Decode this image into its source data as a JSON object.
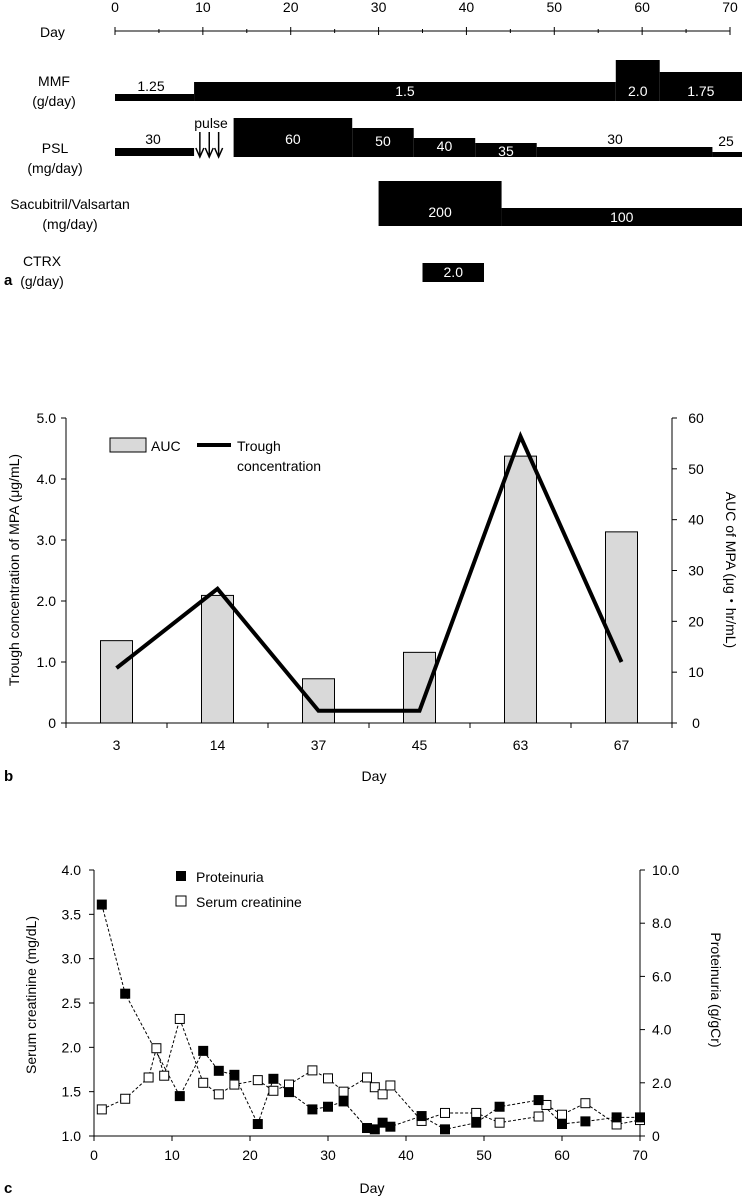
{
  "chart_data": [
    {
      "type": "timeline",
      "panel_label": "a",
      "xlabel": "Day",
      "xlim": [
        0,
        70
      ],
      "ticks": [
        "0",
        "10",
        "20",
        "30",
        "40",
        "50",
        "60",
        "70"
      ],
      "tick_values": [
        0,
        10,
        20,
        30,
        40,
        50,
        60,
        70
      ],
      "rows": [
        {
          "name": "MMF",
          "unit": "(g/day)",
          "segments": [
            {
              "start": 0,
              "end": 9,
              "value": 1.25,
              "label": "1.25"
            },
            {
              "start": 9,
              "end": 57,
              "value": 1.5,
              "label": "1.5"
            },
            {
              "start": 57,
              "end": 62,
              "value": 2.0,
              "label": "2.0"
            },
            {
              "start": 62,
              "end": 72,
              "value": 1.75,
              "label": "1.75"
            }
          ]
        },
        {
          "name": "PSL",
          "unit": "(mg/day)",
          "annotation": "pulse",
          "pulse_days": [
            10,
            11,
            12
          ],
          "segments": [
            {
              "start": 0,
              "end": 9,
              "value": 30,
              "label": "30"
            },
            {
              "start": 13.5,
              "end": 27,
              "value": 60,
              "label": "60"
            },
            {
              "start": 27,
              "end": 34,
              "value": 50,
              "label": "50"
            },
            {
              "start": 34,
              "end": 41,
              "value": 40,
              "label": "40"
            },
            {
              "start": 41,
              "end": 48,
              "value": 35,
              "label": "35"
            },
            {
              "start": 48,
              "end": 68,
              "value": 30,
              "label": "30"
            },
            {
              "start": 68,
              "end": 72,
              "value": 25,
              "label": "25"
            }
          ]
        },
        {
          "name": "Sacubitril/Valsartan",
          "unit": "(mg/day)",
          "segments": [
            {
              "start": 30,
              "end": 44,
              "value": 200,
              "label": "200"
            },
            {
              "start": 44,
              "end": 72,
              "value": 100,
              "label": "100"
            }
          ]
        },
        {
          "name": "CTRX",
          "unit": "(g/day)",
          "segments": [
            {
              "start": 35,
              "end": 42,
              "value": 2.0,
              "label": "2.0"
            }
          ]
        }
      ]
    },
    {
      "type": "bar+line",
      "panel_label": "b",
      "xlabel": "Day",
      "categories": [
        "3",
        "14",
        "37",
        "45",
        "63",
        "67"
      ],
      "series": [
        {
          "name": "AUC",
          "type": "bar",
          "axis": "right",
          "values": [
            16.2,
            25.1,
            8.7,
            13.9,
            52.5,
            37.6
          ]
        },
        {
          "name": "Trough concentration",
          "type": "line",
          "axis": "left",
          "values": [
            0.9,
            2.2,
            0.2,
            0.2,
            4.7,
            1.0
          ]
        }
      ],
      "ylabel": "Trough concentration of MPA (μg/mL)",
      "ylim": [
        0,
        5
      ],
      "yticks": [
        "0",
        "1.0",
        "2.0",
        "3.0",
        "4.0",
        "5.0"
      ],
      "y2label": "AUC of MPA (μg・hr/mL)",
      "y2lim": [
        0,
        60
      ],
      "y2ticks": [
        "0",
        "10",
        "20",
        "30",
        "40",
        "50",
        "60"
      ],
      "legend": {
        "bar": "AUC",
        "line_line1": "Trough",
        "line_line2": "concentration"
      }
    },
    {
      "type": "scatter-line",
      "panel_label": "c",
      "xlabel": "Day",
      "xlim": [
        0,
        70
      ],
      "xticks": [
        "0",
        "10",
        "20",
        "30",
        "40",
        "50",
        "60",
        "70"
      ],
      "ylabel": "Serum creatinine (mg/dL)",
      "ylim": [
        1.0,
        4.0
      ],
      "yticks": [
        "1.0",
        "1.5",
        "2.0",
        "2.5",
        "3.0",
        "3.5",
        "4.0"
      ],
      "y2label": "Proteinuria (g/gCr)",
      "y2lim": [
        0,
        10
      ],
      "y2ticks": [
        "0",
        "2.0",
        "4.0",
        "6.0",
        "8.0",
        "10.0"
      ],
      "series": [
        {
          "name": "Proteinuria",
          "axis": "right",
          "marker": "filled-square",
          "x": [
            1,
            4,
            11,
            14,
            16,
            18,
            21,
            23,
            25,
            28,
            30,
            32,
            35,
            36,
            37,
            38,
            42,
            45,
            49,
            52,
            57,
            60,
            63,
            67,
            70
          ],
          "y": [
            8.7,
            5.35,
            1.5,
            3.2,
            2.45,
            2.3,
            0.45,
            2.15,
            1.65,
            1.0,
            1.1,
            1.3,
            0.3,
            0.25,
            0.5,
            0.35,
            0.75,
            0.25,
            0.5,
            1.1,
            1.35,
            0.45,
            0.55,
            0.7,
            0.7
          ]
        },
        {
          "name": "Serum creatinine",
          "axis": "left",
          "marker": "open-square",
          "x": [
            1,
            4,
            7,
            8,
            9,
            11,
            14,
            16,
            18,
            21,
            23,
            25,
            28,
            30,
            32,
            35,
            36,
            37,
            38,
            42,
            45,
            49,
            52,
            57,
            58,
            60,
            63,
            67,
            70
          ],
          "y": [
            1.3,
            1.42,
            1.66,
            1.99,
            1.68,
            2.32,
            1.6,
            1.47,
            1.58,
            1.63,
            1.51,
            1.58,
            1.74,
            1.65,
            1.5,
            1.66,
            1.55,
            1.47,
            1.57,
            1.17,
            1.26,
            1.26,
            1.15,
            1.22,
            1.35,
            1.24,
            1.37,
            1.13,
            1.18
          ]
        }
      ]
    }
  ]
}
